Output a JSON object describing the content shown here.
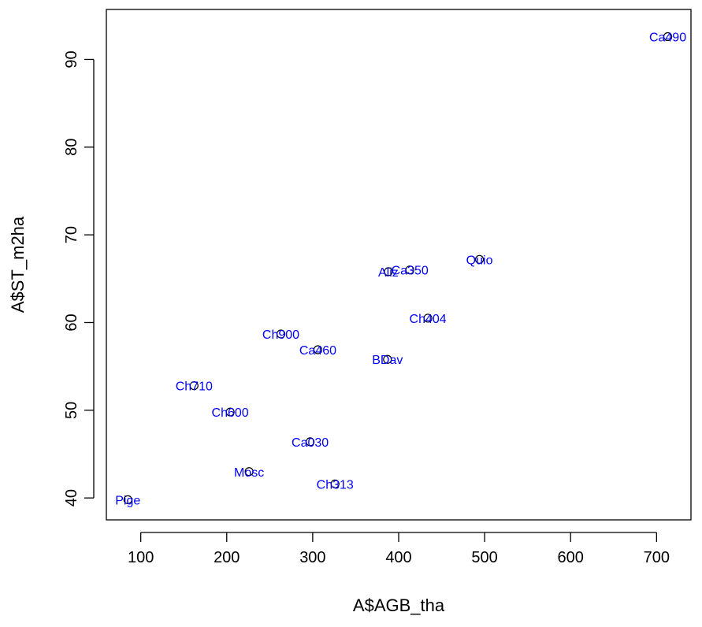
{
  "chart_data": {
    "type": "scatter",
    "title": "",
    "xlabel": "A$AGB_tha",
    "ylabel": "A$ST_m2ha",
    "xlim": [
      60,
      740
    ],
    "ylim": [
      37.5,
      95.7
    ],
    "xticks": [
      100,
      200,
      300,
      400,
      500,
      600,
      700
    ],
    "yticks": [
      40,
      50,
      60,
      70,
      80,
      90
    ],
    "grid": false,
    "marker": "open-circle",
    "colors": {
      "marker": "#000000",
      "label": "#0000ff",
      "axis": "#000000"
    },
    "points": [
      {
        "label": "Pige",
        "x": 85,
        "y": 39.8
      },
      {
        "label": "Ch710",
        "x": 162,
        "y": 52.8
      },
      {
        "label": "Ch600",
        "x": 204,
        "y": 49.8
      },
      {
        "label": "Mosc",
        "x": 226,
        "y": 43.0
      },
      {
        "label": "Ch900",
        "x": 263,
        "y": 58.7
      },
      {
        "label": "Ca030",
        "x": 297,
        "y": 46.4
      },
      {
        "label": "Ca460",
        "x": 306,
        "y": 56.9
      },
      {
        "label": "Ch313",
        "x": 326,
        "y": 41.6
      },
      {
        "label": "Aliz",
        "x": 388,
        "y": 65.8
      },
      {
        "label": "BDav",
        "x": 387,
        "y": 55.8
      },
      {
        "label": "Ca350",
        "x": 413,
        "y": 66.0
      },
      {
        "label": "Ch404",
        "x": 434,
        "y": 60.5
      },
      {
        "label": "Quio",
        "x": 494,
        "y": 67.2
      },
      {
        "label": "Ca490",
        "x": 713,
        "y": 92.6
      }
    ]
  }
}
